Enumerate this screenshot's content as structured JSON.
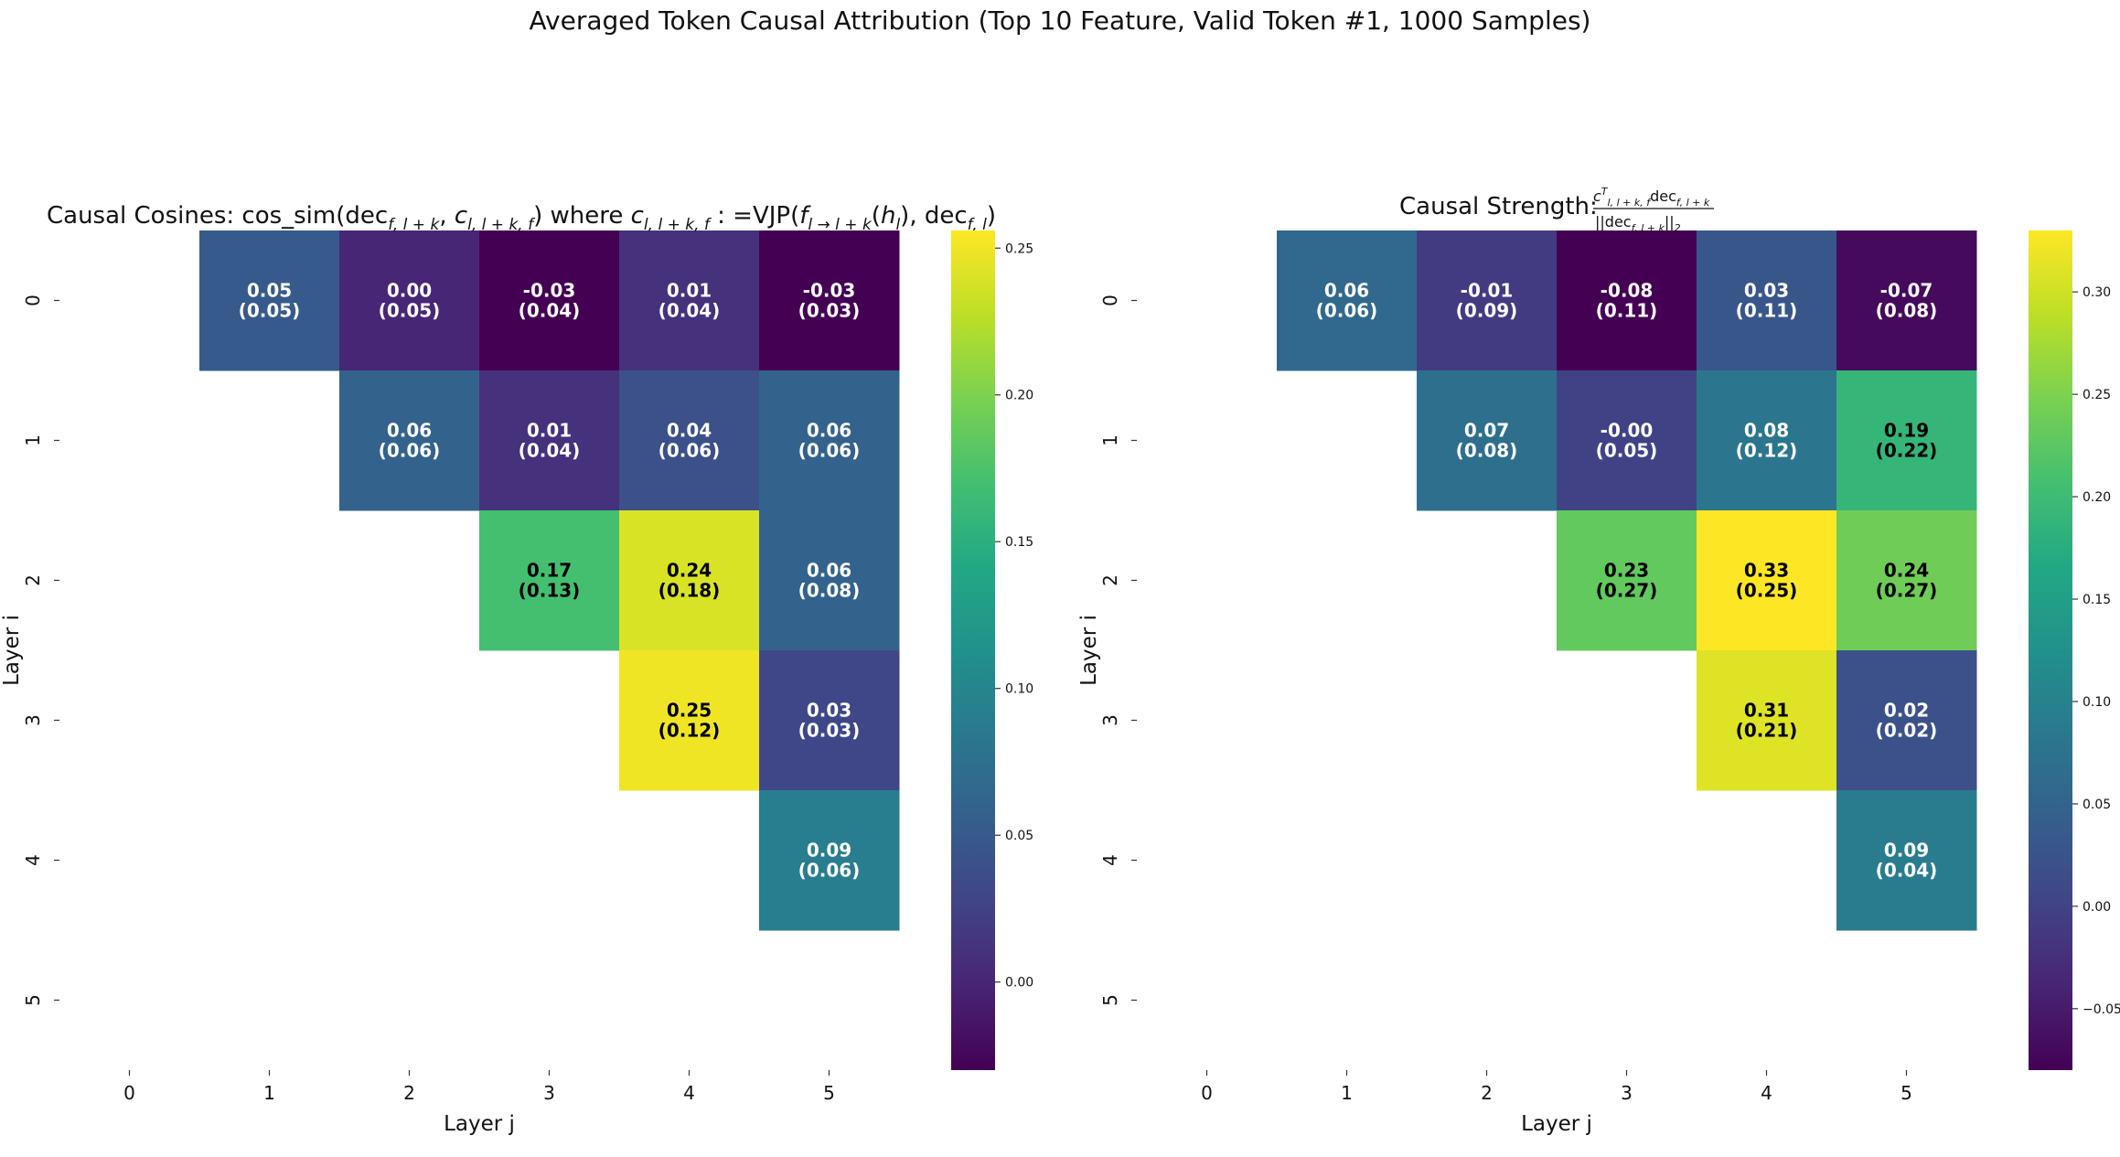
{
  "suptitle": "Averaged Token Causal Attribution (Top 10 Feature, Valid Token #1, 1000 Samples)",
  "chart_data": [
    {
      "type": "heatmap",
      "title": "Causal Cosines: cos_sim(dec_{f,l+k}, c_{l,l+k,f}) where c_{l,l+k,f} := VJP(f_{l→l+k}(h_l), dec_{f,l})",
      "xlabel": "Layer j",
      "ylabel": "Layer i",
      "x_ticks": [
        "0",
        "1",
        "2",
        "3",
        "4",
        "5"
      ],
      "y_ticks": [
        "0",
        "1",
        "2",
        "3",
        "4",
        "5"
      ],
      "colormap": "viridis",
      "vmin": -0.03,
      "vmax": 0.256,
      "colorbar_ticks": [
        "0.00",
        "0.05",
        "0.10",
        "0.15",
        "0.20",
        "0.25"
      ],
      "values": [
        [
          null,
          0.05,
          0.0,
          -0.03,
          0.01,
          -0.03
        ],
        [
          null,
          null,
          0.06,
          0.01,
          0.04,
          0.06
        ],
        [
          null,
          null,
          null,
          0.17,
          0.24,
          0.06
        ],
        [
          null,
          null,
          null,
          null,
          0.25,
          0.03
        ],
        [
          null,
          null,
          null,
          null,
          null,
          0.09
        ],
        [
          null,
          null,
          null,
          null,
          null,
          null
        ]
      ],
      "labels": [
        [
          null,
          "0.05\n(0.05)",
          "0.00\n(0.05)",
          "-0.03\n(0.04)",
          "0.01\n(0.04)",
          "-0.03\n(0.03)"
        ],
        [
          null,
          null,
          "0.06\n(0.06)",
          "0.01\n(0.04)",
          "0.04\n(0.06)",
          "0.06\n(0.06)"
        ],
        [
          null,
          null,
          null,
          "0.17\n(0.13)",
          "0.24\n(0.18)",
          "0.06\n(0.08)"
        ],
        [
          null,
          null,
          null,
          null,
          "0.25\n(0.12)",
          "0.03\n(0.03)"
        ],
        [
          null,
          null,
          null,
          null,
          null,
          "0.09\n(0.06)"
        ],
        [
          null,
          null,
          null,
          null,
          null,
          null
        ]
      ]
    },
    {
      "type": "heatmap",
      "title": "Causal Strength: c^T_{l,l+k,f} dec_{f,l+k} / ||dec_{f,l+k}||_2",
      "xlabel": "Layer j",
      "ylabel": "Layer i",
      "x_ticks": [
        "0",
        "1",
        "2",
        "3",
        "4",
        "5"
      ],
      "y_ticks": [
        "0",
        "1",
        "2",
        "3",
        "4",
        "5"
      ],
      "colormap": "viridis",
      "vmin": -0.08,
      "vmax": 0.33,
      "colorbar_ticks": [
        "−0.05",
        "0.00",
        "0.05",
        "0.10",
        "0.15",
        "0.20",
        "0.25",
        "0.30"
      ],
      "values": [
        [
          null,
          0.06,
          -0.01,
          -0.08,
          0.03,
          -0.07
        ],
        [
          null,
          null,
          0.07,
          -0.0,
          0.08,
          0.19
        ],
        [
          null,
          null,
          null,
          0.23,
          0.33,
          0.24
        ],
        [
          null,
          null,
          null,
          null,
          0.31,
          0.02
        ],
        [
          null,
          null,
          null,
          null,
          null,
          0.09
        ],
        [
          null,
          null,
          null,
          null,
          null,
          null
        ]
      ],
      "labels": [
        [
          null,
          "0.06\n(0.06)",
          "-0.01\n(0.09)",
          "-0.08\n(0.11)",
          "0.03\n(0.11)",
          "-0.07\n(0.08)"
        ],
        [
          null,
          null,
          "0.07\n(0.08)",
          "-0.00\n(0.05)",
          "0.08\n(0.12)",
          "0.19\n(0.22)"
        ],
        [
          null,
          null,
          null,
          "0.23\n(0.27)",
          "0.33\n(0.25)",
          "0.24\n(0.27)"
        ],
        [
          null,
          null,
          null,
          null,
          "0.31\n(0.21)",
          "0.02\n(0.02)"
        ],
        [
          null,
          null,
          null,
          null,
          null,
          "0.09\n(0.04)"
        ],
        [
          null,
          null,
          null,
          null,
          null,
          null
        ]
      ]
    }
  ]
}
